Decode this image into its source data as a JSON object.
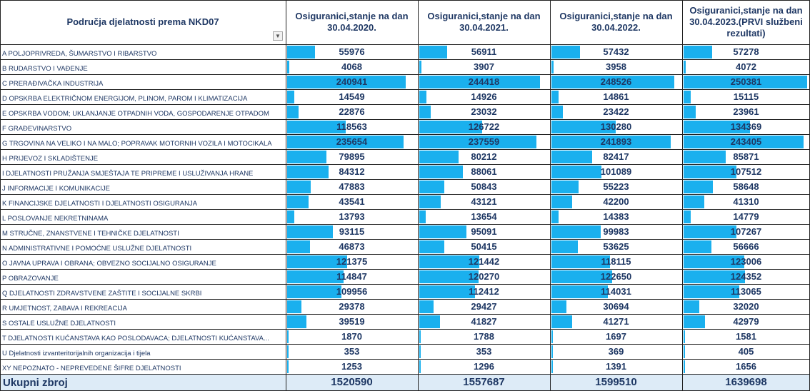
{
  "chart_data": {
    "type": "table",
    "header": {
      "category": "Područja djelatnosti prema NKD07",
      "columns": [
        "Osiguranici,stanje na dan 30.04.2020.",
        "Osiguranici,stanje na dan 30.04.2021.",
        "Osiguranici,stanje na dan 30.04.2022.",
        "Osiguranici,stanje na dan 30.04.2023.(PRVI službeni rezultati)"
      ]
    },
    "rows": [
      {
        "label": "A POLJOPRIVREDA, ŠUMARSTVO I RIBARSTVO",
        "values": [
          55976,
          56911,
          57432,
          57278
        ]
      },
      {
        "label": "B RUDARSTVO I VAĐENJE",
        "values": [
          4068,
          3907,
          3958,
          4072
        ]
      },
      {
        "label": "C PRERAĐIVAČKA INDUSTRIJA",
        "values": [
          240941,
          244418,
          248526,
          250381
        ]
      },
      {
        "label": "D OPSKRBA ELEKTRIČNOM ENERGIJOM, PLINOM, PAROM I KLIMATIZACIJA",
        "values": [
          14549,
          14926,
          14861,
          15115
        ]
      },
      {
        "label": "E OPSKRBA VODOM; UKLANJANJE OTPADNIH VODA, GOSPODARENJE OTPADOM",
        "values": [
          22876,
          23032,
          23422,
          23961
        ]
      },
      {
        "label": "F GRAĐEVINARSTVO",
        "values": [
          118563,
          126722,
          130280,
          134369
        ]
      },
      {
        "label": "G TRGOVINA NA VELIKO I NA MALO; POPRAVAK MOTORNIH VOZILA I MOTOCIKALA",
        "values": [
          235654,
          237559,
          241893,
          243405
        ]
      },
      {
        "label": "H PRIJEVOZ I SKLADIŠTENJE",
        "values": [
          79895,
          80212,
          82417,
          85871
        ]
      },
      {
        "label": "I DJELATNOSTI PRUŽANJA SMJEŠTAJA TE PRIPREME I USLUŽIVANJA HRANE",
        "values": [
          84312,
          88061,
          101089,
          107512
        ]
      },
      {
        "label": "J INFORMACIJE I KOMUNIKACIJE",
        "values": [
          47883,
          50843,
          55223,
          58648
        ]
      },
      {
        "label": "K FINANCIJSKE DJELATNOSTI I DJELATNOSTI OSIGURANJA",
        "values": [
          43541,
          43121,
          42200,
          41310
        ]
      },
      {
        "label": "L POSLOVANJE NEKRETNINAMA",
        "values": [
          13793,
          13654,
          14383,
          14779
        ]
      },
      {
        "label": "M STRUČNE, ZNANSTVENE I TEHNIČKE DJELATNOSTI",
        "values": [
          93115,
          95091,
          99983,
          107267
        ]
      },
      {
        "label": "N ADMINISTRATIVNE I POMOĆNE USLUŽNE DJELATNOSTI",
        "values": [
          46873,
          50415,
          53625,
          56666
        ]
      },
      {
        "label": "O JAVNA UPRAVA I OBRANA; OBVEZNO SOCIJALNO OSIGURANJE",
        "values": [
          121375,
          121442,
          118115,
          123006
        ]
      },
      {
        "label": "P OBRAZOVANJE",
        "values": [
          114847,
          120270,
          122650,
          124352
        ]
      },
      {
        "label": "Q DJELATNOSTI ZDRAVSTVENE ZAŠTITE I SOCIJALNE SKRBI",
        "values": [
          109956,
          112412,
          114031,
          113065
        ]
      },
      {
        "label": "R UMJETNOST, ZABAVA I REKREACIJA",
        "values": [
          29378,
          29427,
          30694,
          32020
        ]
      },
      {
        "label": "S OSTALE USLUŽNE DJELATNOSTI",
        "values": [
          39519,
          41827,
          41271,
          42979
        ]
      },
      {
        "label": "T DJELATNOSTI KUĆANSTAVA KAO POSLODAVACA; DJELATNOSTI KUĆANSTAVA...",
        "values": [
          1870,
          1788,
          1697,
          1581
        ]
      },
      {
        "label": "U Djelatnosti izvanteritorijalnih organizacija i tijela",
        "values": [
          353,
          353,
          369,
          405
        ]
      },
      {
        "label": "XY NEPOZNATO - NEPREVEDENE ŠIFRE DJELATNOSTI",
        "values": [
          1253,
          1296,
          1391,
          1656
        ]
      }
    ],
    "total": {
      "label": "Ukupni zbroj",
      "values": [
        1520590,
        1557687,
        1599510,
        1639698
      ]
    },
    "bar_color": "#1ab0ee",
    "text_color": "#1f3864",
    "total_row_color": "#ddebf7"
  }
}
